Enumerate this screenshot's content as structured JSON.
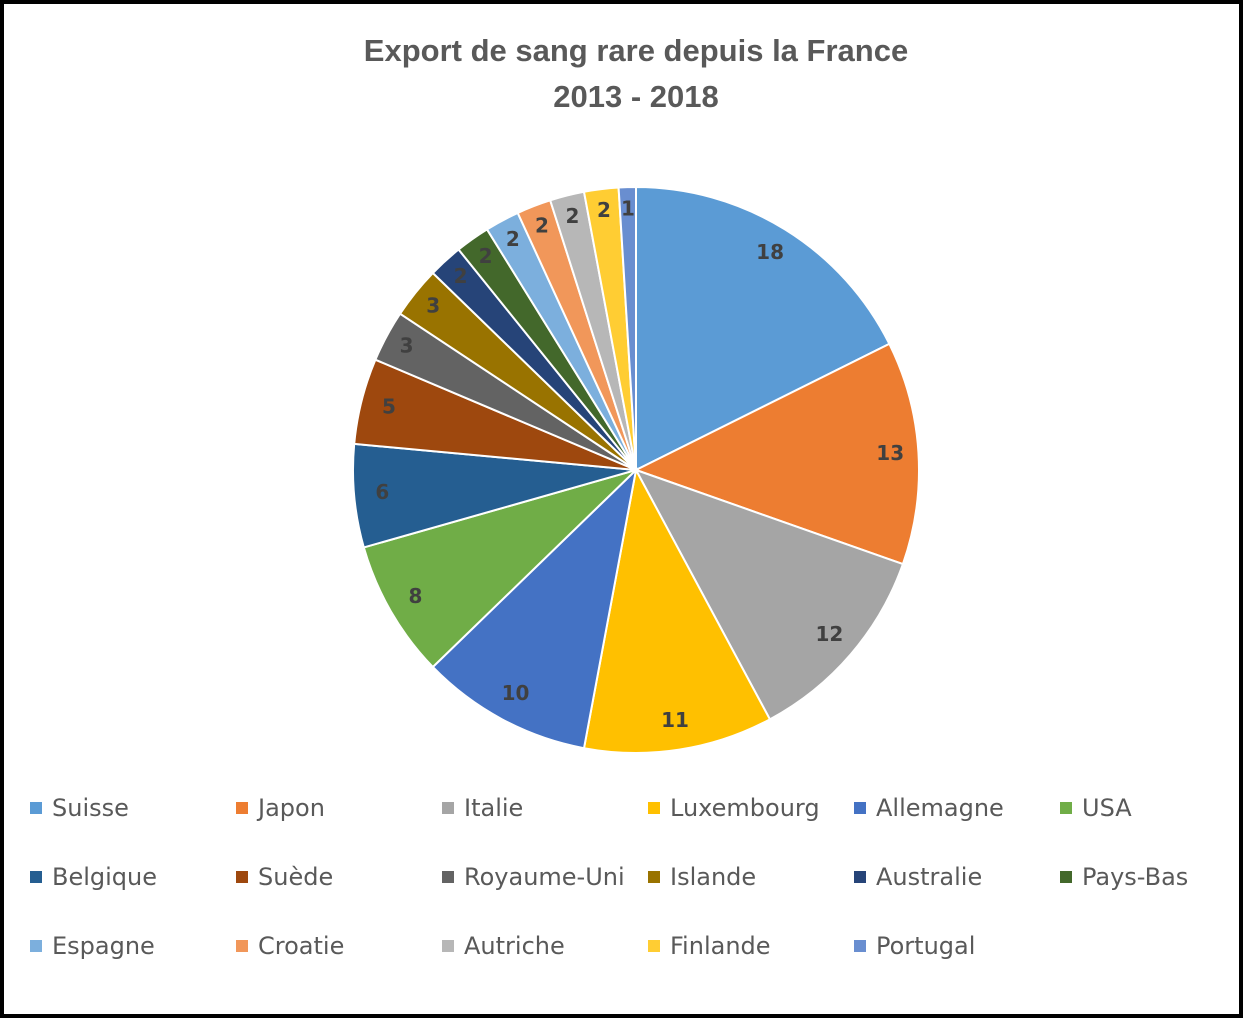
{
  "chart_data": {
    "type": "pie",
    "title": [
      "Export de sang rare depuis la France",
      "2013 - 2018"
    ],
    "categories": [
      "Suisse",
      "Japon",
      "Italie",
      "Luxembourg",
      "Allemagne",
      "USA",
      "Belgique",
      "Suède",
      "Royaume-Uni",
      "Islande",
      "Australie",
      "Pays-Bas",
      "Espagne",
      "Croatie",
      "Autriche",
      "Finlande",
      "Portugal"
    ],
    "values": [
      18,
      13,
      12,
      11,
      10,
      8,
      6,
      5,
      3,
      3,
      2,
      2,
      2,
      2,
      2,
      2,
      1
    ],
    "colors": [
      "#5b9bd5",
      "#ed7d31",
      "#a5a5a5",
      "#ffc000",
      "#4472c4",
      "#70ad47",
      "#255e91",
      "#9e480e",
      "#636363",
      "#997300",
      "#264478",
      "#43682b",
      "#7cafdd",
      "#f1975a",
      "#b7b7b7",
      "#ffcd33",
      "#698ed0"
    ],
    "legend": "bottom"
  }
}
